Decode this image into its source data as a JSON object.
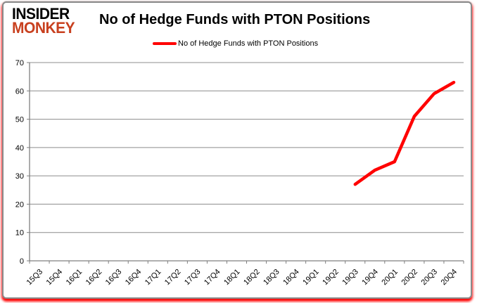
{
  "logo": {
    "line1": "INSIDER",
    "line2": "MONKEY",
    "color": "#c8401f"
  },
  "header": {
    "title": "No of Hedge Funds with PTON Positions"
  },
  "legend": {
    "label": "No of Hedge Funds with PTON Positions",
    "color": "#ff0000"
  },
  "chart_data": {
    "type": "line",
    "title": "No of Hedge Funds with PTON Positions",
    "categories": [
      "15Q3",
      "15Q4",
      "16Q1",
      "16Q2",
      "16Q3",
      "16Q4",
      "17Q1",
      "17Q2",
      "17Q3",
      "17Q4",
      "18Q1",
      "18Q2",
      "18Q3",
      "18Q4",
      "19Q1",
      "19Q2",
      "19Q3",
      "19Q4",
      "20Q1",
      "20Q2",
      "20Q3",
      "20Q4"
    ],
    "series": [
      {
        "name": "No of Hedge Funds with PTON Positions",
        "color": "#ff0000",
        "values": [
          null,
          null,
          null,
          null,
          null,
          null,
          null,
          null,
          null,
          null,
          null,
          null,
          null,
          null,
          null,
          null,
          27,
          32,
          35,
          51,
          59,
          63
        ]
      }
    ],
    "xlabel": "",
    "ylabel": "",
    "ylim": [
      0,
      70
    ],
    "ytick_step": 10,
    "grid": "horizontal",
    "grid_color": "#8c8c8c",
    "legend_position": "top-center",
    "x_label_rotation": -45
  }
}
